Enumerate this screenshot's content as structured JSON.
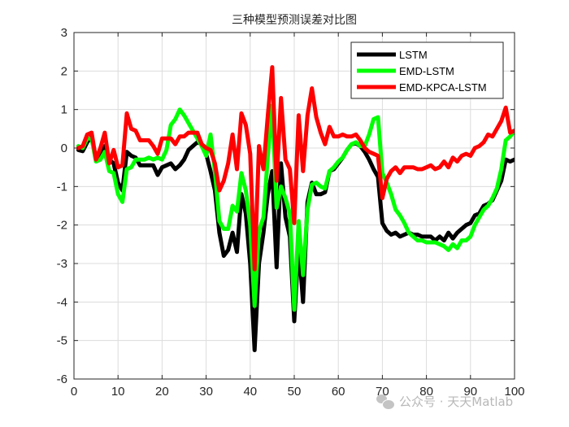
{
  "chart_data": {
    "type": "line",
    "title": "三种模型预测误差对比图",
    "xlabel": "",
    "ylabel": "",
    "xlim": [
      0,
      100
    ],
    "ylim": [
      -6,
      3
    ],
    "xticks": [
      0,
      10,
      20,
      30,
      40,
      50,
      60,
      70,
      80,
      90,
      100
    ],
    "yticks": [
      3,
      2,
      1,
      0,
      -1,
      -2,
      -3,
      -4,
      -5,
      -6
    ],
    "grid": true,
    "legend_position": "northeast",
    "x": [
      1,
      2,
      3,
      4,
      5,
      6,
      7,
      8,
      9,
      10,
      11,
      12,
      13,
      14,
      15,
      16,
      17,
      18,
      19,
      20,
      21,
      22,
      23,
      24,
      25,
      26,
      27,
      28,
      29,
      30,
      31,
      32,
      33,
      34,
      35,
      36,
      37,
      38,
      39,
      40,
      41,
      42,
      43,
      44,
      45,
      46,
      47,
      48,
      49,
      50,
      51,
      52,
      53,
      54,
      55,
      56,
      57,
      58,
      59,
      60,
      61,
      62,
      63,
      64,
      65,
      66,
      67,
      68,
      69,
      70,
      71,
      72,
      73,
      74,
      75,
      76,
      77,
      78,
      79,
      80,
      81,
      82,
      83,
      84,
      85,
      86,
      87,
      88,
      89,
      90,
      91,
      92,
      93,
      94,
      95,
      96,
      97,
      98,
      99,
      100
    ],
    "series": [
      {
        "name": "LSTM",
        "color": "#000000",
        "values": [
          -0.05,
          -0.08,
          0.15,
          0.3,
          -0.3,
          -0.2,
          0.05,
          -0.3,
          -0.4,
          -0.9,
          -1.1,
          -0.1,
          -0.2,
          -0.25,
          -0.45,
          -0.45,
          -0.45,
          -0.45,
          -0.7,
          -0.5,
          -0.45,
          -0.4,
          -0.55,
          -0.45,
          -0.3,
          -0.05,
          0.05,
          0.15,
          0.1,
          -0.15,
          -0.6,
          -1.1,
          -2.2,
          -2.8,
          -2.65,
          -2.2,
          -2.7,
          -1.2,
          -1.7,
          -3.0,
          -5.25,
          -3.0,
          -2.2,
          -1.2,
          -0.6,
          -3.1,
          -0.4,
          -1.8,
          -2.3,
          -4.5,
          -2.5,
          -4.0,
          -1.4,
          -0.9,
          -1.2,
          -1.2,
          -1.15,
          -0.6,
          -0.55,
          -0.4,
          -0.25,
          -0.05,
          0.1,
          0.12,
          0.05,
          -0.1,
          -0.3,
          -0.55,
          -0.75,
          -1.95,
          -2.15,
          -2.25,
          -2.2,
          -2.3,
          -2.25,
          -2.2,
          -2.25,
          -2.25,
          -2.3,
          -2.3,
          -2.3,
          -2.4,
          -2.3,
          -2.4,
          -2.2,
          -2.35,
          -2.2,
          -2.1,
          -2.0,
          -1.95,
          -1.75,
          -1.7,
          -1.5,
          -1.45,
          -1.35,
          -1.1,
          -0.85,
          -0.3,
          -0.35,
          -0.3
        ]
      },
      {
        "name": "EMD-LSTM",
        "color": "#00ff00",
        "values": [
          0.05,
          0.0,
          0.25,
          0.25,
          -0.35,
          -0.3,
          -0.1,
          -0.6,
          -0.65,
          -1.2,
          -1.4,
          -0.55,
          -0.5,
          -0.3,
          -0.3,
          -0.3,
          -0.25,
          -0.3,
          -0.25,
          -0.3,
          -0.05,
          0.6,
          0.75,
          1.0,
          0.85,
          0.65,
          0.45,
          0.25,
          0.05,
          -0.2,
          0.35,
          -0.6,
          -1.9,
          -2.1,
          -2.1,
          -1.5,
          -1.65,
          -0.65,
          -1.1,
          -2.0,
          -4.1,
          -2.15,
          -1.8,
          -0.2,
          1.1,
          -1.55,
          -1.0,
          -1.3,
          -1.7,
          -4.2,
          -1.9,
          -3.3,
          -1.6,
          -0.95,
          -0.9,
          -1.0,
          -1.05,
          -0.6,
          -0.5,
          -0.35,
          -0.25,
          -0.05,
          0.1,
          0.15,
          0.05,
          0.05,
          0.35,
          0.75,
          0.8,
          -0.65,
          -0.9,
          -1.2,
          -1.6,
          -1.75,
          -1.95,
          -2.2,
          -2.3,
          -2.4,
          -2.4,
          -2.45,
          -2.45,
          -2.45,
          -2.5,
          -2.55,
          -2.65,
          -2.5,
          -2.6,
          -2.4,
          -2.4,
          -2.3,
          -2.0,
          -1.8,
          -1.6,
          -1.5,
          -1.3,
          -1.05,
          -0.55,
          0.2,
          0.3,
          0.45
        ]
      },
      {
        "name": "EMD-KPCA-LSTM",
        "color": "#ff0000",
        "values": [
          0.0,
          0.05,
          0.35,
          0.4,
          -0.3,
          0.0,
          0.4,
          -0.4,
          -0.05,
          -0.5,
          -0.45,
          0.9,
          0.5,
          0.45,
          0.2,
          0.2,
          0.2,
          0.05,
          -0.15,
          0.25,
          0.25,
          0.25,
          0.1,
          0.3,
          0.3,
          0.4,
          0.4,
          0.4,
          0.1,
          0.0,
          -0.05,
          -0.4,
          -1.1,
          -0.85,
          -0.4,
          0.35,
          -0.55,
          0.9,
          0.6,
          -0.15,
          -3.15,
          0.05,
          -0.55,
          0.85,
          2.1,
          -0.85,
          1.3,
          -0.3,
          -0.55,
          -1.95,
          0.85,
          -0.6,
          0.85,
          1.55,
          0.8,
          0.4,
          0.1,
          0.55,
          0.3,
          0.3,
          0.35,
          0.3,
          0.3,
          0.35,
          0.2,
          0.0,
          -0.1,
          -0.15,
          -0.2,
          -1.3,
          -0.8,
          -0.6,
          -0.5,
          -0.65,
          -0.5,
          -0.5,
          -0.5,
          -0.55,
          -0.55,
          -0.5,
          -0.45,
          -0.55,
          -0.5,
          -0.35,
          -0.5,
          -0.25,
          -0.35,
          -0.2,
          -0.15,
          -0.2,
          0.0,
          0.05,
          0.15,
          0.35,
          0.3,
          0.5,
          0.7,
          1.05,
          0.4,
          0.45
        ]
      }
    ]
  },
  "legend": {
    "items": [
      {
        "label": "LSTM",
        "color": "#000000"
      },
      {
        "label": "EMD-LSTM",
        "color": "#00ff00"
      },
      {
        "label": "EMD-KPCA-LSTM",
        "color": "#ff0000"
      }
    ]
  },
  "watermark": {
    "text": "公众号 · 天天Matlab"
  }
}
